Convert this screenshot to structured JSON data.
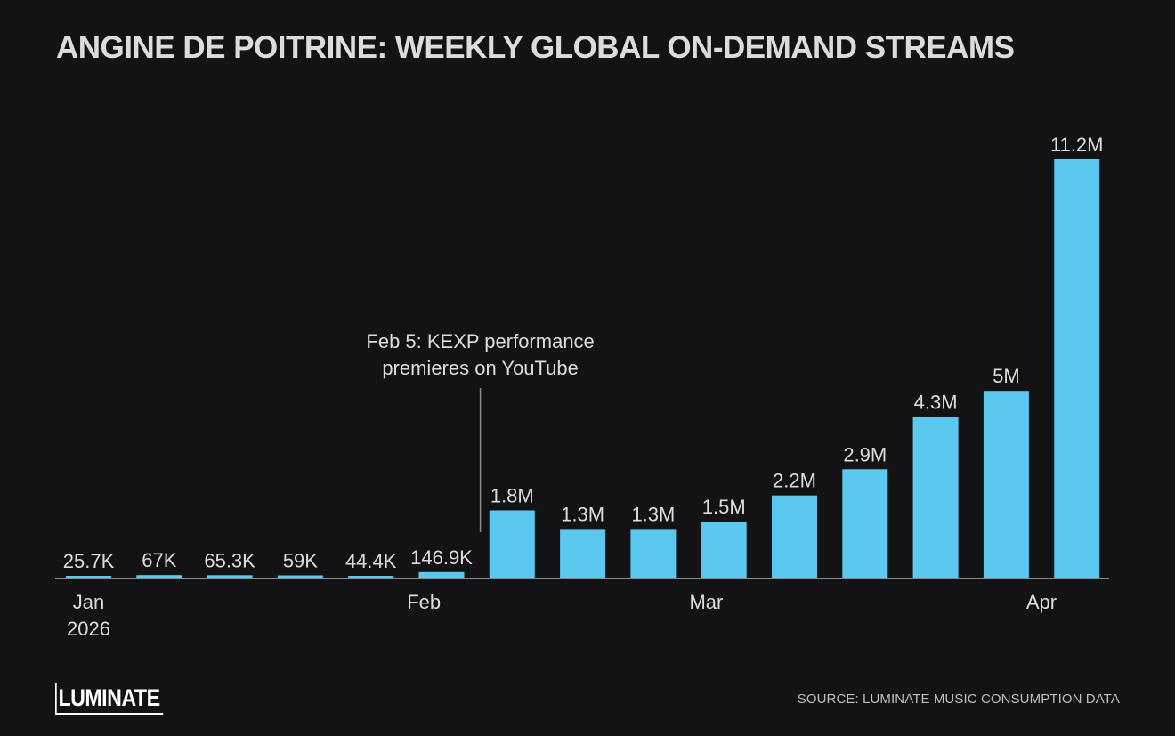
{
  "title": "ANGINE DE POITRINE: WEEKLY GLOBAL ON-DEMAND STREAMS",
  "source": "SOURCE: LUMINATE MUSIC CONSUMPTION DATA",
  "logo_text": "LUMINATE",
  "colors": {
    "background": "#131316",
    "bar": "#5bc8ef",
    "text": "#dcdcdc",
    "axis": "#8a8a8a"
  },
  "chart_data": {
    "type": "bar",
    "values": [
      25700,
      67000,
      65300,
      59000,
      44400,
      146900,
      1800000,
      1300000,
      1300000,
      1500000,
      2200000,
      2900000,
      4300000,
      5000000,
      11200000
    ],
    "data_labels": [
      "25.7K",
      "67K",
      "65.3K",
      "59K",
      "44.4K",
      "146.9K",
      "1.8M",
      "1.3M",
      "1.3M",
      "1.5M",
      "2.2M",
      "2.9M",
      "4.3M",
      "5M",
      "11.2M"
    ],
    "x_ticks": [
      {
        "index": 0,
        "lines": [
          "Jan",
          "2026"
        ]
      },
      {
        "index": 4.75,
        "lines": [
          "Feb"
        ]
      },
      {
        "index": 8.75,
        "lines": [
          "Mar"
        ]
      },
      {
        "index": 13.5,
        "lines": [
          "Apr"
        ]
      }
    ],
    "annotation": {
      "lines": [
        "Feb 5: KEXP performance",
        "premieres on YouTube"
      ],
      "bar_index": 5.55
    },
    "ylim": [
      0,
      11200000
    ],
    "grid": false
  }
}
